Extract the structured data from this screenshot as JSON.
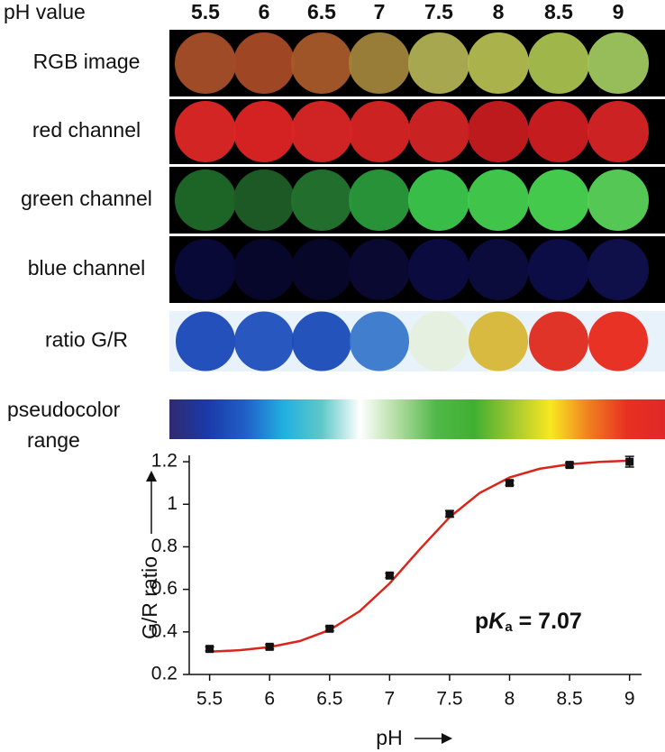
{
  "panels": {
    "header_label": "pH value",
    "ph_labels": [
      "5.5",
      "6",
      "6.5",
      "7",
      "7.5",
      "8",
      "8.5",
      "9"
    ],
    "rows": [
      {
        "label": "RGB image",
        "background": "#000000",
        "colors": [
          "#a8502a",
          "#a84a26",
          "#a85a2a",
          "#a0843a",
          "#b0b054",
          "#b4bc50",
          "#a8c050",
          "#a0c860"
        ]
      },
      {
        "label": "red channel",
        "background": "#000000",
        "colors": [
          "#e02828",
          "#e02424",
          "#dc2626",
          "#d82424",
          "#d42424",
          "#c81c20",
          "#d01e22",
          "#d82426"
        ]
      },
      {
        "label": "green channel",
        "background": "#000000",
        "colors": [
          "#1f6a2a",
          "#1e5e28",
          "#237430",
          "#2a9a3c",
          "#3cc84c",
          "#44d04e",
          "#48d452",
          "#5ad25a"
        ]
      },
      {
        "label": "blue channel",
        "background": "#000000",
        "colors": [
          "#0a0a3a",
          "#08082e",
          "#08082c",
          "#0a0a34",
          "#0c0c44",
          "#0c0c40",
          "#0d0d4a",
          "#10104e"
        ]
      },
      {
        "label": "ratio G/R",
        "background": "#e8f2fa",
        "colors": [
          "#1a48b8",
          "#1e50bc",
          "#1a4cb8",
          "#3a78cc",
          "#e6f0e0",
          "#d8b838",
          "#e02a1e",
          "#e8281a"
        ]
      }
    ]
  },
  "colorbar": {
    "label": [
      "pseudocolor",
      "range"
    ],
    "colors": [
      "#302a70",
      "#1a3aa8",
      "#2060c8",
      "#20b0e0",
      "#60c8c8",
      "#ffffff",
      "#b0dca0",
      "#50b848",
      "#40b030",
      "#a0c830",
      "#f8e820",
      "#f08020",
      "#e83020",
      "#e02828"
    ]
  },
  "chart_data": {
    "type": "scatter",
    "x_label": "pH",
    "y_label": "G/R ratio",
    "annotation": {
      "prefix": "p",
      "symbol": "K",
      "subscript": "a",
      "text": " = 7.07"
    },
    "xlim": [
      5.33,
      9.1
    ],
    "ylim": [
      0.2,
      1.23
    ],
    "xticks": [
      5.5,
      6,
      6.5,
      7,
      7.5,
      8,
      8.5,
      9
    ],
    "yticks": [
      0.2,
      0.4,
      0.6,
      0.8,
      1,
      1.2
    ],
    "series": [
      {
        "color": "#111111",
        "x": [
          5.5,
          6,
          6.5,
          7,
          7.5,
          8,
          8.5,
          9
        ],
        "values": [
          0.32,
          0.33,
          0.415,
          0.665,
          0.955,
          1.1,
          1.185,
          1.2
        ],
        "errors": [
          0.01,
          0.01,
          0.01,
          0.01,
          0.015,
          0.01,
          0.01,
          0.025
        ]
      },
      {
        "color": "#d9261c",
        "x": [
          5.5,
          5.75,
          6,
          6.25,
          6.5,
          6.75,
          7,
          7.25,
          7.5,
          7.75,
          8,
          8.25,
          8.5,
          8.75,
          9
        ],
        "values": [
          0.307,
          0.314,
          0.329,
          0.357,
          0.409,
          0.497,
          0.628,
          0.788,
          0.939,
          1.053,
          1.126,
          1.167,
          1.188,
          1.199,
          1.205
        ]
      }
    ]
  }
}
